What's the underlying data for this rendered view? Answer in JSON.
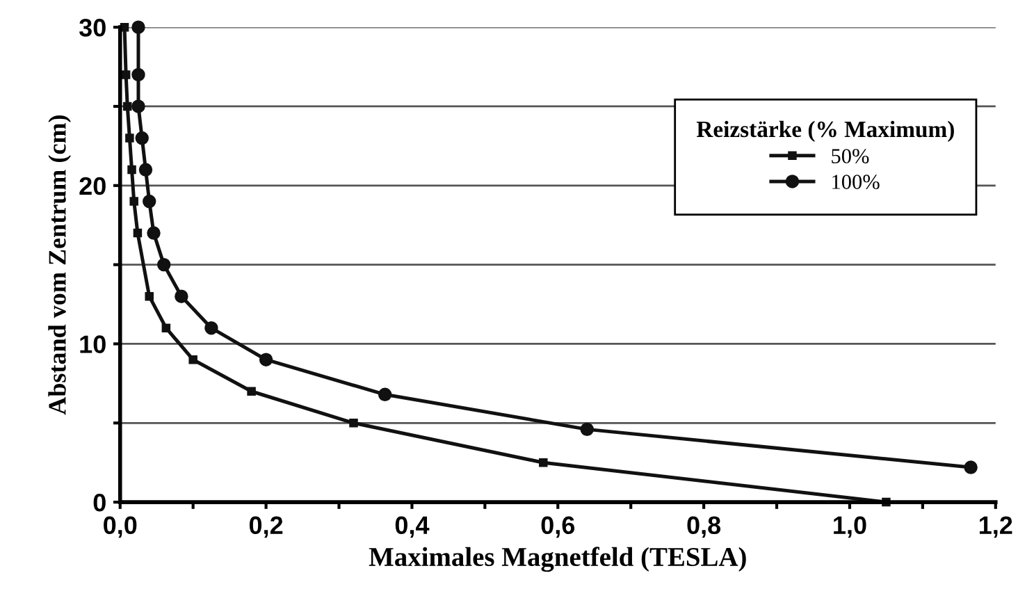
{
  "chart_data": {
    "type": "line",
    "xlabel": "Maximales Magnetfeld (TESLA)",
    "ylabel": "Abstand vom Zentrum (cm)",
    "legend_title": "Reizstärke (% Maximum)",
    "legend": "top right",
    "grid": "y",
    "xlim": [
      0,
      1.2
    ],
    "ylim": [
      0,
      30
    ],
    "xticks": [
      {
        "value": 0,
        "label": "0,0"
      },
      {
        "value": 0.1,
        "label": null
      },
      {
        "value": 0.2,
        "label": "0,2"
      },
      {
        "value": 0.3,
        "label": null
      },
      {
        "value": 0.4,
        "label": "0,4"
      },
      {
        "value": 0.5,
        "label": null
      },
      {
        "value": 0.6,
        "label": "0,6"
      },
      {
        "value": 0.7,
        "label": null
      },
      {
        "value": 0.8,
        "label": "0,8"
      },
      {
        "value": 0.9,
        "label": null
      },
      {
        "value": 1.0,
        "label": "1,0"
      },
      {
        "value": 1.1,
        "label": null
      },
      {
        "value": 1.2,
        "label": "1,2"
      }
    ],
    "yticks": [
      0,
      {
        "value": 5,
        "label": null
      },
      10,
      {
        "value": 15,
        "label": null
      },
      20,
      {
        "value": 25,
        "label": null
      },
      30
    ],
    "series": [
      {
        "name": "50%",
        "color": "#111111",
        "marker": "square",
        "x": [
          0.006,
          0.008,
          0.01,
          0.013,
          0.016,
          0.019,
          0.024,
          0.04,
          0.063,
          0.1,
          0.18,
          0.32,
          0.58,
          1.05
        ],
        "values": [
          30,
          27,
          25,
          23,
          21,
          19,
          17,
          13,
          11,
          9,
          7,
          5,
          2.5,
          0
        ]
      },
      {
        "name": "100%",
        "color": "#111111",
        "marker": "circle",
        "x": [
          0.025,
          0.025,
          0.025,
          0.03,
          0.035,
          0.04,
          0.046,
          0.06,
          0.084,
          0.125,
          0.2,
          0.363,
          0.64,
          1.166
        ],
        "values": [
          30,
          27,
          25,
          23,
          21,
          19,
          17,
          15,
          13,
          11,
          9,
          6.8,
          4.6,
          2.2
        ]
      }
    ]
  }
}
